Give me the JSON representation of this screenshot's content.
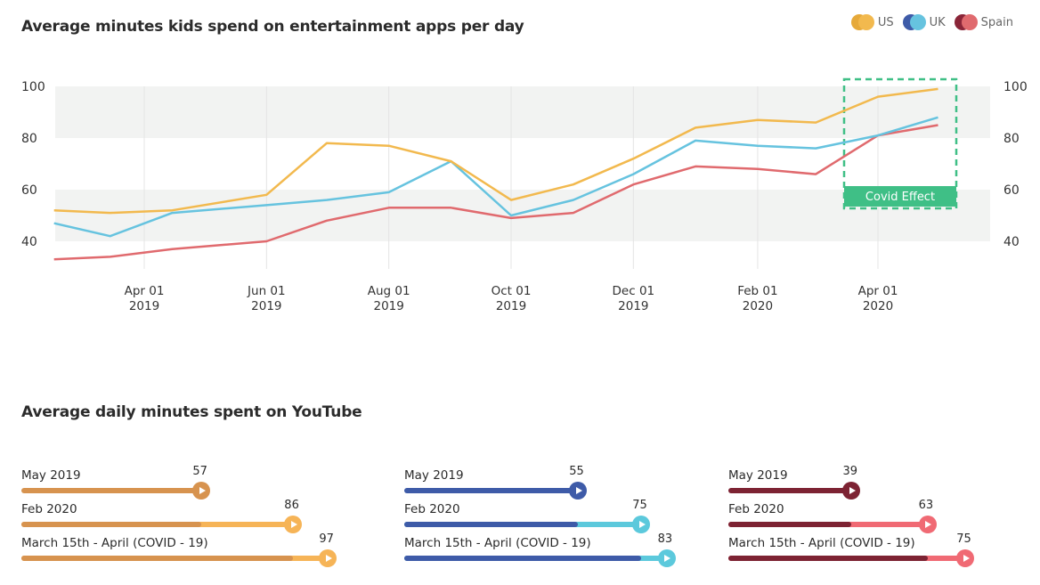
{
  "line_chart_title": "Average minutes kids spend on entertainment apps per day",
  "youtube_title": "Average daily minutes spent on YouTube",
  "legend": [
    {
      "label": "US",
      "color": "#f2b94e",
      "color2": "#e6a93a"
    },
    {
      "label": "UK",
      "color": "#66c3df",
      "color2": "#3e5ba8"
    },
    {
      "label": "Spain",
      "color": "#e06a6e",
      "color2": "#8a2538"
    }
  ],
  "annotation_label": "Covid Effect",
  "chart_data": [
    {
      "type": "line",
      "title": "Average minutes kids spend on entertainment apps per day",
      "x": [
        "2019-02-15",
        "2019-03-15",
        "2019-04-15",
        "2019-06-01",
        "2019-07-01",
        "2019-08-01",
        "2019-09-01",
        "2019-10-01",
        "2019-11-01",
        "2019-12-01",
        "2020-01-01",
        "2020-02-01",
        "2020-03-01",
        "2020-04-01",
        "2020-05-01"
      ],
      "xticks": [
        {
          "date": "2019-04-01",
          "label": [
            "Apr 01",
            "2019"
          ]
        },
        {
          "date": "2019-06-01",
          "label": [
            "Jun 01",
            "2019"
          ]
        },
        {
          "date": "2019-08-01",
          "label": [
            "Aug 01",
            "2019"
          ]
        },
        {
          "date": "2019-10-01",
          "label": [
            "Oct 01",
            "2019"
          ]
        },
        {
          "date": "2019-12-01",
          "label": [
            "Dec 01",
            "2019"
          ]
        },
        {
          "date": "2020-02-01",
          "label": [
            "Feb 01",
            "2020"
          ]
        },
        {
          "date": "2020-04-01",
          "label": [
            "Apr 01",
            "2020"
          ]
        }
      ],
      "yticks": [
        40,
        60,
        80,
        100
      ],
      "ylim": [
        33,
        102
      ],
      "xrange": [
        "2019-02-01",
        "2020-05-15"
      ],
      "grid": "horizontal bands",
      "series": [
        {
          "name": "US",
          "color": "#f2b94e",
          "values": [
            52,
            51,
            52,
            58,
            78,
            77,
            71,
            56,
            62,
            72,
            84,
            87,
            86,
            96,
            99
          ]
        },
        {
          "name": "UK",
          "color": "#66c3df",
          "values": [
            47,
            42,
            51,
            54,
            56,
            59,
            71,
            50,
            56,
            66,
            79,
            77,
            76,
            81,
            88
          ]
        },
        {
          "name": "Spain",
          "color": "#e06a6e",
          "values": [
            33,
            34,
            37,
            40,
            48,
            53,
            53,
            49,
            51,
            62,
            69,
            68,
            66,
            81,
            85
          ]
        }
      ],
      "annotation": {
        "label": "Covid Effect",
        "x_from": "2020-03-15",
        "x_to": "2020-05-15",
        "color": "#3fbf86"
      }
    },
    {
      "type": "bar",
      "title": "Average daily minutes spent on YouTube",
      "categories": [
        "May 2019",
        "Feb 2020",
        "March 15th - April (COVID - 19)"
      ],
      "series": [
        {
          "name": "US",
          "values": [
            57,
            86,
            97
          ],
          "dark": "#d7934f",
          "light": "#f6b457"
        },
        {
          "name": "UK",
          "values": [
            55,
            75,
            83
          ],
          "dark": "#3e5ba8",
          "light": "#5cc9dc"
        },
        {
          "name": "Spain",
          "values": [
            39,
            63,
            75
          ],
          "dark": "#7d2333",
          "light": "#f06a74"
        }
      ]
    }
  ]
}
